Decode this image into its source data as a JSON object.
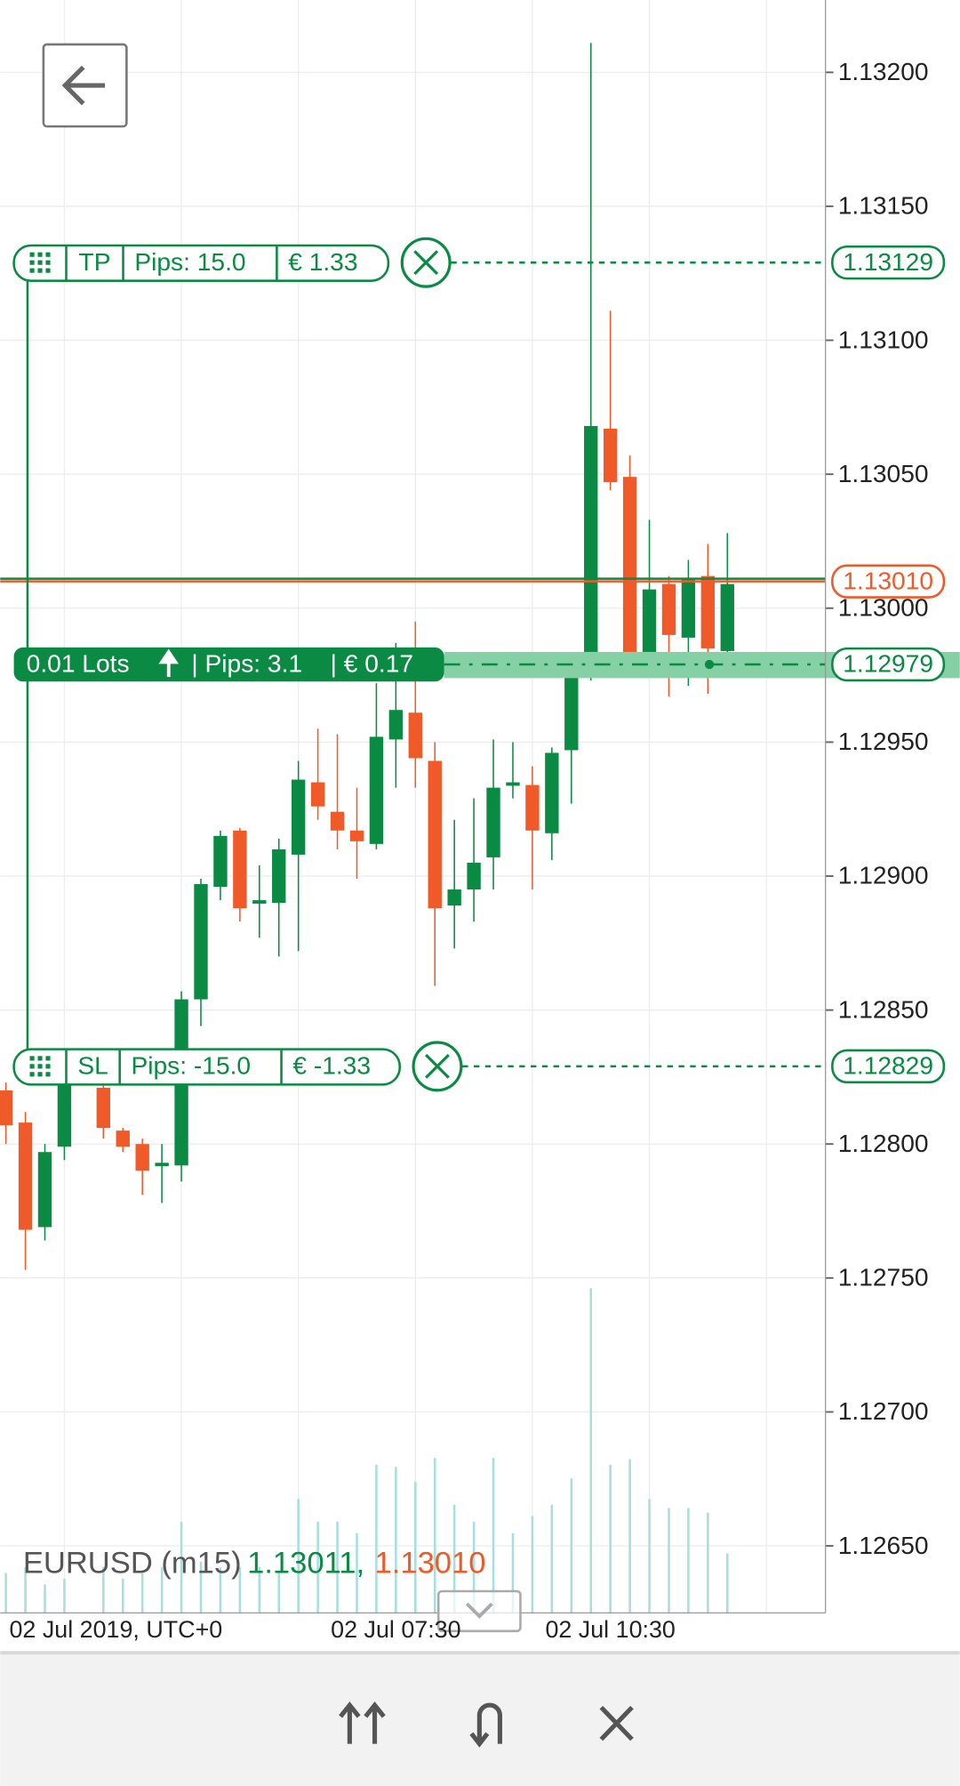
{
  "chart_data": {
    "type": "candlestick",
    "symbol": "EURUSD (m15)",
    "ask": {
      "value": 1.13011,
      "label": "1.13011,"
    },
    "bid": {
      "value": 1.1301,
      "label": "1.13010"
    },
    "categories": [
      "02 Jul 2019, UTC+0",
      null,
      null,
      null,
      null,
      null,
      null,
      null,
      null,
      null,
      null,
      null,
      null,
      null,
      null,
      null,
      null,
      null,
      null,
      null,
      "02 Jul 07:30",
      null,
      null,
      null,
      null,
      null,
      null,
      null,
      null,
      null,
      null,
      "02 Jul 10:30",
      null,
      null,
      null,
      null,
      null,
      null
    ],
    "open": [
      1.1282,
      1.12808,
      1.12769,
      1.12799,
      null,
      1.12821,
      1.12805,
      1.128,
      1.12792,
      1.12792,
      1.12854,
      1.12896,
      1.12917,
      1.1289,
      1.1289,
      1.12908,
      1.12935,
      1.12924,
      1.12917,
      1.12912,
      1.12951,
      1.12961,
      1.12943,
      1.12889,
      1.12895,
      1.12907,
      1.12934,
      1.12934,
      1.12916,
      1.12947,
      1.12979,
      1.13067,
      1.13049,
      1.12982,
      1.13009,
      1.12989,
      1.13012,
      1.12984
    ],
    "high": [
      1.12823,
      1.12812,
      1.128,
      1.12825,
      null,
      1.12823,
      1.12806,
      1.12802,
      1.128,
      1.12857,
      1.12899,
      1.12917,
      1.12918,
      1.12904,
      1.12914,
      1.12943,
      1.12955,
      1.12953,
      1.12933,
      1.12972,
      1.12987,
      1.12995,
      1.1295,
      1.12921,
      1.12929,
      1.12951,
      1.1295,
      1.12941,
      1.12948,
      1.12983,
      1.13211,
      1.13111,
      1.13057,
      1.13033,
      1.13012,
      1.13018,
      1.13024,
      1.13028
    ],
    "low": [
      1.128,
      1.12753,
      1.12764,
      1.12794,
      null,
      1.12802,
      1.12797,
      1.12781,
      1.12778,
      1.12786,
      1.12844,
      1.12891,
      1.12883,
      1.12877,
      1.1287,
      1.12872,
      1.12921,
      1.1291,
      1.12899,
      1.1291,
      1.12933,
      1.12933,
      1.12859,
      1.12873,
      1.12883,
      1.12895,
      1.12929,
      1.12895,
      1.12906,
      1.12927,
      1.12973,
      1.13044,
      1.12976,
      1.1298,
      1.12967,
      1.12971,
      1.12968,
      1.12979
    ],
    "close": [
      1.12807,
      1.12768,
      1.12797,
      1.12823,
      null,
      1.12806,
      1.12799,
      1.1279,
      1.12793,
      1.12854,
      1.12897,
      1.12915,
      1.12888,
      1.12891,
      1.1291,
      1.12936,
      1.12926,
      1.12917,
      1.12913,
      1.12952,
      1.12962,
      1.12944,
      1.12888,
      1.12895,
      1.12905,
      1.12933,
      1.12935,
      1.12917,
      1.12946,
      1.12979,
      1.13068,
      1.13047,
      1.12983,
      1.13007,
      1.1299,
      1.13011,
      1.12985,
      1.13009
    ],
    "volume": [
      35,
      40,
      25,
      30,
      null,
      40,
      30,
      35,
      40,
      80,
      45,
      40,
      40,
      40,
      35,
      100,
      80,
      80,
      70,
      130,
      128,
      115,
      136,
      95,
      80,
      136,
      70,
      85,
      95,
      118,
      285,
      130,
      135,
      100,
      92,
      92,
      88,
      52
    ],
    "volume_lim": [
      0,
      300
    ],
    "ylim": [
      1.12625,
      1.13227
    ],
    "yticks": [
      {
        "value": 1.1265,
        "label": "1.12650"
      },
      {
        "value": 1.127,
        "label": "1.12700"
      },
      {
        "value": 1.1275,
        "label": "1.12750"
      },
      {
        "value": 1.128,
        "label": "1.12800"
      },
      {
        "value": 1.1285,
        "label": "1.12850"
      },
      {
        "value": 1.129,
        "label": "1.12900"
      },
      {
        "value": 1.1295,
        "label": "1.12950"
      },
      {
        "value": 1.13,
        "label": "1.13000"
      },
      {
        "value": 1.1305,
        "label": "1.13050"
      },
      {
        "value": 1.131,
        "label": "1.13100"
      },
      {
        "value": 1.1315,
        "label": "1.13150"
      },
      {
        "value": 1.132,
        "label": "1.13200"
      }
    ],
    "grid": true,
    "colors": {
      "up": "#0a8a43",
      "down": "#f05a28",
      "volume": "#a9dede"
    },
    "take_profit": {
      "tag": "TP",
      "pips": "Pips: 15.0",
      "amount": "€ 1.33",
      "price": 1.13129
    },
    "stop_loss": {
      "tag": "SL",
      "pips": "Pips: -15.0",
      "amount": "€ -1.33",
      "price": 1.12829
    },
    "position": {
      "lots": "0.01 Lots",
      "pips": "| Pips: 3.1",
      "amount": "| € 0.17",
      "price": 1.12979
    }
  }
}
